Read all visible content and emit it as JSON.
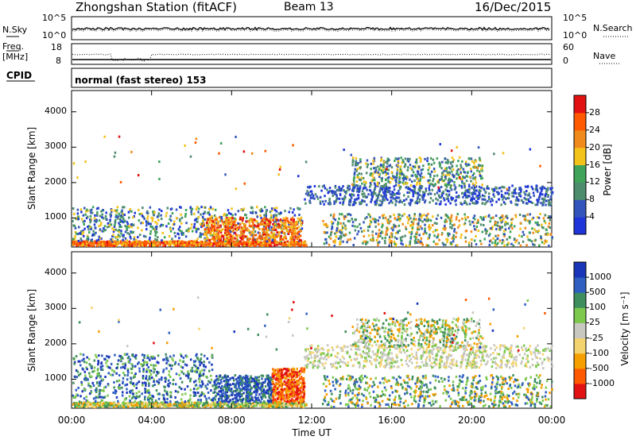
{
  "header": {
    "station": "Zhongshan Station (fitACF)",
    "beam": "Beam 13",
    "date": "16/Dec/2015"
  },
  "strip1": {
    "left_label": "N.Sky",
    "left_ticks": [
      "10^5",
      "10^0"
    ],
    "right_ticks": [
      "10^5",
      "10^0"
    ],
    "right_label": "N.Search"
  },
  "strip2": {
    "left_label_top": "Freq.",
    "left_label_bottom": "[MHz]",
    "left_ticks": [
      "18",
      "8"
    ],
    "right_ticks": [
      "60",
      "0"
    ],
    "right_label": "Nave"
  },
  "cpid": {
    "label": "CPID",
    "mode": "normal (fast stereo) 153"
  },
  "colors": {
    "power": [
      "#1f35d9",
      "#3355bb",
      "#4e8c6e",
      "#3fa35a",
      "#f3c21b",
      "#f08a1c",
      "#ff5a00",
      "#e21212"
    ],
    "velocity": [
      "#e21212",
      "#ff5a00",
      "#f5a000",
      "#f3d36e",
      "#c8c8c0",
      "#7dc94e",
      "#3e8f5d",
      "#2f5fc0",
      "#1a36b8"
    ]
  },
  "chart_data": [
    {
      "type": "heatmap",
      "title": "",
      "xlabel": "",
      "ylabel": "Slant Range [km]",
      "x_ticks": [
        "00:00",
        "04:00",
        "08:00",
        "12:00",
        "16:00",
        "20:00",
        "00:00"
      ],
      "y_ticks": [
        1000,
        2000,
        3000,
        4000
      ],
      "ylim": [
        180,
        4600
      ],
      "colorbar": {
        "label": "Power [dB]",
        "ticks": [
          4,
          8,
          12,
          16,
          20,
          24,
          28
        ],
        "range": [
          0,
          32
        ]
      }
    },
    {
      "type": "heatmap",
      "title": "",
      "xlabel": "Time UT",
      "ylabel": "Slant Range [km]",
      "x_ticks": [
        "00:00",
        "04:00",
        "08:00",
        "12:00",
        "16:00",
        "20:00",
        "00:00"
      ],
      "y_ticks": [
        1000,
        2000,
        3000,
        4000
      ],
      "ylim": [
        180,
        4600
      ],
      "colorbar": {
        "label": "Velocity [m s⁻¹]",
        "ticks": [
          -1000,
          -500,
          -100,
          -25,
          25,
          100,
          500,
          1000
        ]
      }
    }
  ]
}
